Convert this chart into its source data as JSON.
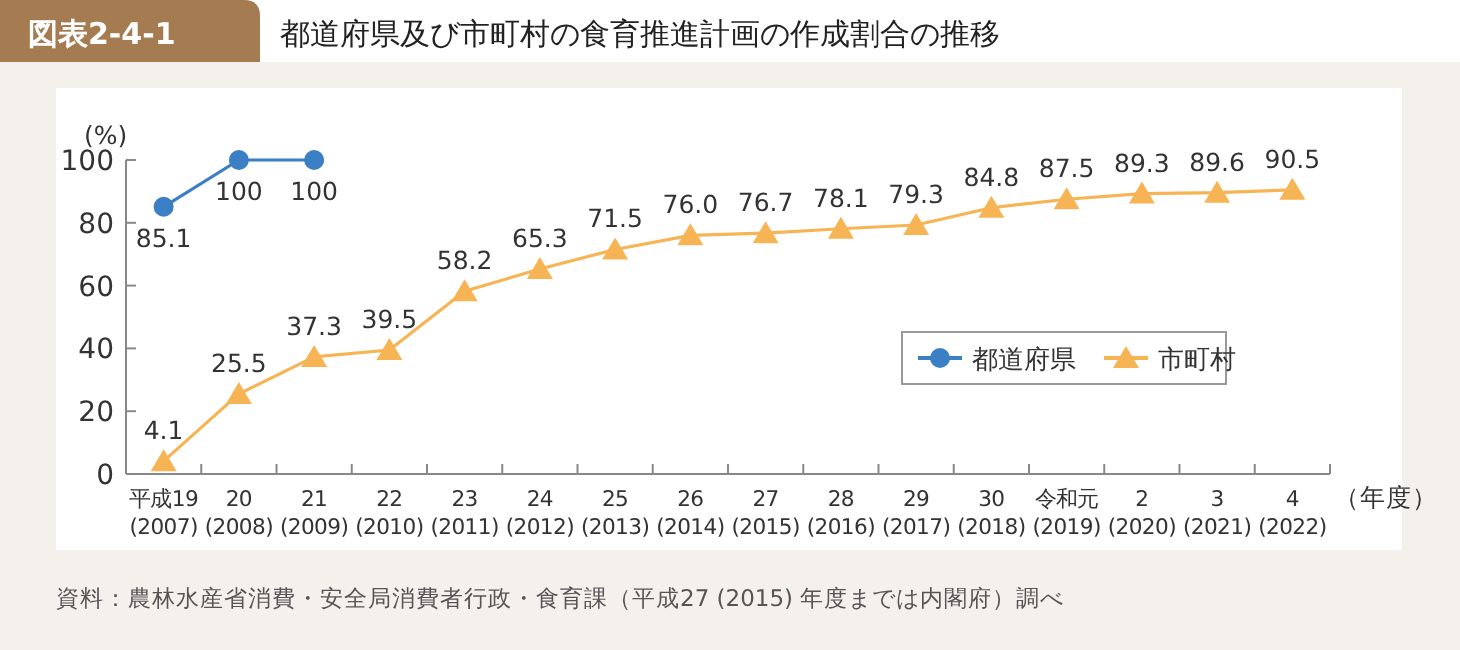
{
  "chart_data": {
    "type": "line",
    "title": "都道府県及び市町村の食育推進計画の作成割合の推移",
    "annotations": [
      "図表2-4-1",
      "資料：農林水産省消費・安全局消費者行政・食育課（平成27 (2015) 年度までは内閣府）調べ"
    ],
    "ylabel": "(%)",
    "xlabel": "（年度）",
    "categories": [
      "平成19\n(2007)",
      "20\n(2008)",
      "21\n(2009)",
      "22\n(2010)",
      "23\n(2011)",
      "24\n(2012)",
      "25\n(2013)",
      "26\n(2014)",
      "27\n(2015)",
      "28\n(2016)",
      "29\n(2017)",
      "30\n(2018)",
      "令和元\n(2019)",
      "2\n(2020)",
      "3\n(2021)",
      "4\n(2022)"
    ],
    "series": [
      {
        "name": "都道府県",
        "color": "#3b7fc4",
        "marker": "circle",
        "values": [
          85.1,
          100,
          100,
          null,
          null,
          null,
          null,
          null,
          null,
          null,
          null,
          null,
          null,
          null,
          null,
          null
        ],
        "value_labels": [
          "85.1",
          "100",
          "100",
          null,
          null,
          null,
          null,
          null,
          null,
          null,
          null,
          null,
          null,
          null,
          null,
          null
        ]
      },
      {
        "name": "市町村",
        "color": "#f7b455",
        "marker": "triangle",
        "values": [
          4.1,
          25.5,
          37.3,
          39.5,
          58.2,
          65.3,
          71.5,
          76.0,
          76.7,
          78.1,
          79.3,
          84.8,
          87.5,
          89.3,
          89.6,
          90.5
        ],
        "value_labels": [
          "4.1",
          "25.5",
          "37.3",
          "39.5",
          "58.2",
          "65.3",
          "71.5",
          "76.0",
          "76.7",
          "78.1",
          "79.3",
          "84.8",
          "87.5",
          "89.3",
          "89.6",
          "90.5"
        ]
      }
    ],
    "ylim": [
      0,
      100
    ],
    "yticks": [
      0,
      20,
      40,
      60,
      80,
      100
    ],
    "grid": false,
    "legend": "bottom right",
    "line_style": "solid"
  }
}
